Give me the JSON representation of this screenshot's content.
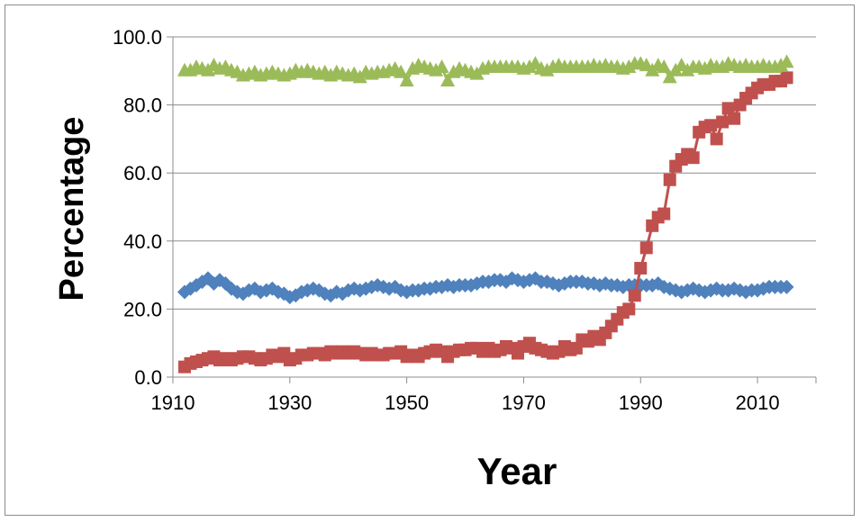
{
  "chart_data": {
    "type": "line",
    "title": "",
    "xlabel": "Year",
    "ylabel": "Percentage",
    "xlim": [
      1910,
      2020
    ],
    "ylim": [
      0,
      100
    ],
    "x_ticks": [
      1910,
      1930,
      1950,
      1970,
      1990,
      2010
    ],
    "x_tick_labels": [
      "1910",
      "1930",
      "1950",
      "1970",
      "1990",
      "2010"
    ],
    "y_ticks": [
      0,
      20,
      40,
      60,
      80,
      100
    ],
    "y_tick_labels": [
      "0.0",
      "20.0",
      "40.0",
      "60.0",
      "80.0",
      "100.0"
    ],
    "grid": "horizontal",
    "legend": "none",
    "x": [
      1912,
      1913,
      1914,
      1915,
      1916,
      1917,
      1918,
      1919,
      1920,
      1921,
      1922,
      1923,
      1924,
      1925,
      1926,
      1927,
      1928,
      1929,
      1930,
      1931,
      1932,
      1933,
      1934,
      1935,
      1936,
      1937,
      1938,
      1939,
      1940,
      1941,
      1942,
      1943,
      1944,
      1945,
      1946,
      1947,
      1948,
      1949,
      1950,
      1951,
      1952,
      1953,
      1954,
      1955,
      1956,
      1957,
      1958,
      1959,
      1960,
      1961,
      1962,
      1963,
      1964,
      1965,
      1966,
      1967,
      1968,
      1969,
      1970,
      1971,
      1972,
      1973,
      1974,
      1975,
      1976,
      1977,
      1978,
      1979,
      1980,
      1981,
      1982,
      1983,
      1984,
      1985,
      1986,
      1987,
      1988,
      1989,
      1990,
      1991,
      1992,
      1993,
      1994,
      1995,
      1996,
      1997,
      1998,
      1999,
      2000,
      2001,
      2002,
      2003,
      2004,
      2005,
      2006,
      2007,
      2008,
      2009,
      2010,
      2011,
      2012,
      2013,
      2014,
      2015
    ],
    "series": [
      {
        "marker": "diamond",
        "color": "#4f81bd",
        "values": [
          25.0,
          26.0,
          27.0,
          28.0,
          29.0,
          27.5,
          28.5,
          27.5,
          26.0,
          25.0,
          24.5,
          25.5,
          26.0,
          25.0,
          25.5,
          26.0,
          25.0,
          24.5,
          23.5,
          24.0,
          25.0,
          25.5,
          26.0,
          25.5,
          24.5,
          24.0,
          25.0,
          24.5,
          25.5,
          26.0,
          25.5,
          26.0,
          26.5,
          27.0,
          26.5,
          26.0,
          26.5,
          25.5,
          25.0,
          25.5,
          25.5,
          26.0,
          26.0,
          26.5,
          26.5,
          27.0,
          26.5,
          27.0,
          27.0,
          27.0,
          27.5,
          28.0,
          28.0,
          28.5,
          28.5,
          28.0,
          29.0,
          28.5,
          28.0,
          28.5,
          29.0,
          28.0,
          28.0,
          27.5,
          27.0,
          27.5,
          28.0,
          28.0,
          28.0,
          27.5,
          27.5,
          27.0,
          27.5,
          27.0,
          27.0,
          26.5,
          27.0,
          27.0,
          27.0,
          27.0,
          27.0,
          27.5,
          26.5,
          26.0,
          25.5,
          25.0,
          25.5,
          26.0,
          25.5,
          25.0,
          25.5,
          26.0,
          25.5,
          25.5,
          26.0,
          25.5,
          25.0,
          25.5,
          25.5,
          26.0,
          26.5,
          26.5,
          26.5,
          26.5
        ]
      },
      {
        "marker": "square",
        "color": "#c0504d",
        "values": [
          3.0,
          4.0,
          4.5,
          5.0,
          5.5,
          6.0,
          5.0,
          5.5,
          5.0,
          5.5,
          6.0,
          6.0,
          5.5,
          5.0,
          5.5,
          6.5,
          6.0,
          7.0,
          5.0,
          5.5,
          6.5,
          6.5,
          7.0,
          7.0,
          6.5,
          7.5,
          7.0,
          7.5,
          7.0,
          7.5,
          7.0,
          6.5,
          7.0,
          6.5,
          6.5,
          7.0,
          7.0,
          7.5,
          6.0,
          6.5,
          6.0,
          7.0,
          7.5,
          8.0,
          7.5,
          6.0,
          7.5,
          8.0,
          8.0,
          8.5,
          8.5,
          7.5,
          8.5,
          7.5,
          8.0,
          9.0,
          8.5,
          7.0,
          9.0,
          10.0,
          8.5,
          8.0,
          7.5,
          7.0,
          7.5,
          9.0,
          8.0,
          8.5,
          11.0,
          10.5,
          12.0,
          11.0,
          13.0,
          15.0,
          17.0,
          19.0,
          20.0,
          24.0,
          32.0,
          38.0,
          44.5,
          47.0,
          48.0,
          58.0,
          62.0,
          64.0,
          65.5,
          64.5,
          72.0,
          73.5,
          74.0,
          70.0,
          75.0,
          79.0,
          76.0,
          80.0,
          82.0,
          83.5,
          85.0,
          86.0,
          86.0,
          87.0,
          87.0,
          88.0
        ]
      },
      {
        "marker": "triangle",
        "color": "#9bbb59",
        "values": [
          90.0,
          90.0,
          91.0,
          90.5,
          90.0,
          91.5,
          90.5,
          91.0,
          90.0,
          89.5,
          88.5,
          89.0,
          89.5,
          88.5,
          89.0,
          89.5,
          89.0,
          88.5,
          89.0,
          90.0,
          89.5,
          90.0,
          89.5,
          89.0,
          89.5,
          88.5,
          89.5,
          89.0,
          88.5,
          89.0,
          88.0,
          89.5,
          89.0,
          89.5,
          89.5,
          90.0,
          90.5,
          89.5,
          87.0,
          90.5,
          91.5,
          91.0,
          90.5,
          90.0,
          91.0,
          87.0,
          89.5,
          90.5,
          90.0,
          89.5,
          89.0,
          90.5,
          91.0,
          91.0,
          91.0,
          91.0,
          91.0,
          91.0,
          90.5,
          91.0,
          92.0,
          90.5,
          90.0,
          91.0,
          91.5,
          91.0,
          91.0,
          91.0,
          91.0,
          91.0,
          91.5,
          91.0,
          91.5,
          91.0,
          91.0,
          90.5,
          91.0,
          92.0,
          92.0,
          91.5,
          90.0,
          91.5,
          91.0,
          88.0,
          90.0,
          91.5,
          90.0,
          91.0,
          91.0,
          90.5,
          91.5,
          91.0,
          91.0,
          92.0,
          91.5,
          91.0,
          91.5,
          91.0,
          91.0,
          91.5,
          91.0,
          91.0,
          91.5,
          92.5
        ]
      }
    ]
  }
}
